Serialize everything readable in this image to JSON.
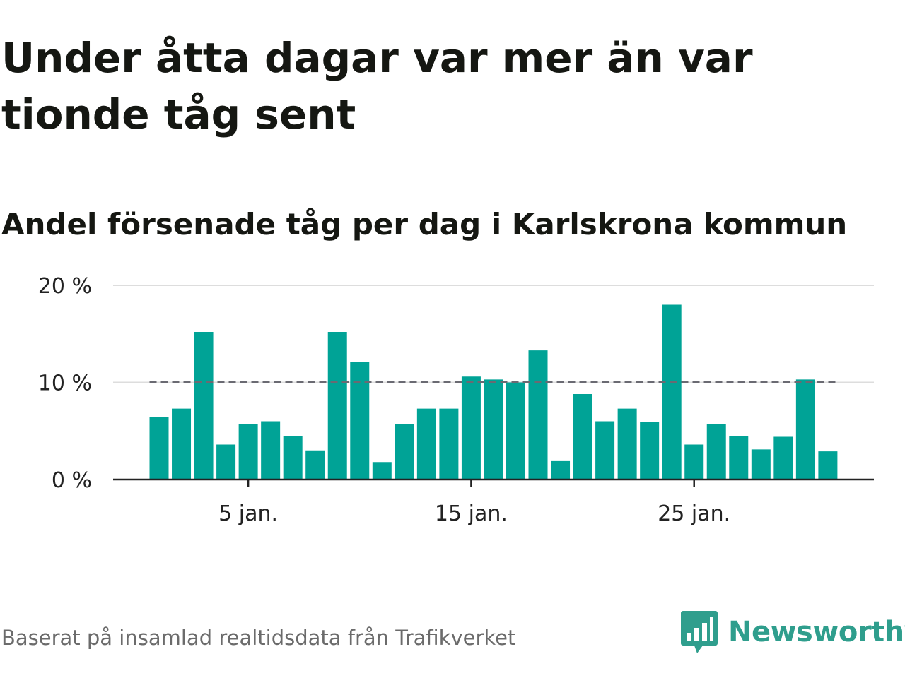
{
  "title": "Under åtta dagar var mer än var tionde tåg sent",
  "subtitle": "Andel försenade tåg per dag i Karlskrona kommun",
  "footer": "Baserat på insamlad realtidsdata från Trafikverket",
  "brand": {
    "name": "Newsworthy",
    "logo_icon": "bar-chart-speech-bubble-icon",
    "color": "#2f9e8d"
  },
  "colors": {
    "bar": "#00a396",
    "threshold": "#6a6a72",
    "grid": "#dddddd",
    "axis": "#222222"
  },
  "chart_data": {
    "type": "bar",
    "x": [
      "2024-01-01",
      "2024-01-02",
      "2024-01-03",
      "2024-01-04",
      "2024-01-05",
      "2024-01-06",
      "2024-01-07",
      "2024-01-08",
      "2024-01-09",
      "2024-01-10",
      "2024-01-11",
      "2024-01-12",
      "2024-01-13",
      "2024-01-14",
      "2024-01-15",
      "2024-01-16",
      "2024-01-17",
      "2024-01-18",
      "2024-01-19",
      "2024-01-20",
      "2024-01-21",
      "2024-01-22",
      "2024-01-23",
      "2024-01-24",
      "2024-01-25",
      "2024-01-26",
      "2024-01-27",
      "2024-01-28",
      "2024-01-29",
      "2024-01-30",
      "2024-01-31"
    ],
    "values": [
      6.4,
      7.3,
      15.2,
      3.6,
      5.7,
      6.0,
      4.5,
      3.0,
      15.2,
      12.1,
      1.8,
      5.7,
      7.3,
      7.3,
      10.6,
      10.3,
      10.0,
      13.3,
      1.9,
      8.8,
      6.0,
      7.3,
      5.9,
      18.0,
      3.6,
      5.7,
      4.5,
      3.1,
      4.4,
      10.3,
      2.9
    ],
    "x_ticks": [
      {
        "x": "2024-01-05",
        "label": "5 jan."
      },
      {
        "x": "2024-01-15",
        "label": "15 jan."
      },
      {
        "x": "2024-01-25",
        "label": "25 jan."
      }
    ],
    "y_ticks": [
      {
        "value": 0,
        "label": "0 %"
      },
      {
        "value": 10,
        "label": "10 %"
      },
      {
        "value": 20,
        "label": "20 %"
      }
    ],
    "ylim": [
      0,
      20
    ],
    "threshold": 10,
    "grid": true,
    "xlabel": "",
    "ylabel": ""
  }
}
